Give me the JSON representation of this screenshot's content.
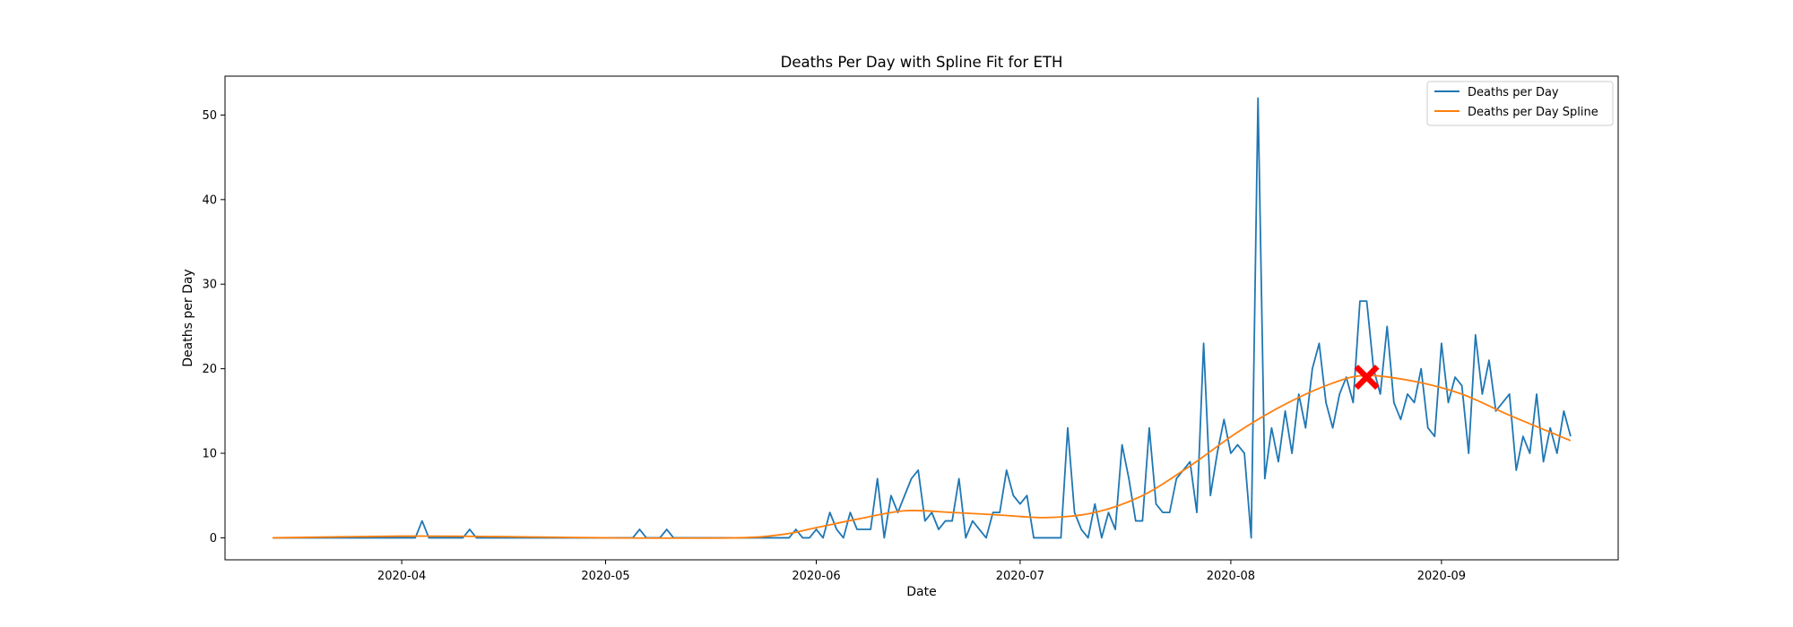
{
  "chart_data": {
    "type": "line",
    "title": "Deaths Per Day with Spline Fit for ETH",
    "xlabel": "Date",
    "ylabel": "Deaths per Day",
    "x_tick_labels": [
      "2020-04",
      "2020-05",
      "2020-06",
      "2020-07",
      "2020-08",
      "2020-09"
    ],
    "y_ticks": [
      0,
      10,
      20,
      30,
      40,
      50
    ],
    "xlim": [
      "2020-03-06",
      "2020-09-27"
    ],
    "ylim": [
      -2.6,
      54.6
    ],
    "legend_position": "upper right",
    "grid": false,
    "series": [
      {
        "name": "Deaths per Day",
        "color": "#1f77b4",
        "points": [
          [
            "2020-03-13",
            0
          ],
          [
            "2020-04-02",
            0
          ],
          [
            "2020-04-04",
            2
          ],
          [
            "2020-04-05",
            0
          ],
          [
            "2020-04-10",
            0
          ],
          [
            "2020-04-11",
            1
          ],
          [
            "2020-04-12",
            0
          ],
          [
            "2020-05-05",
            0
          ],
          [
            "2020-05-06",
            1
          ],
          [
            "2020-05-07",
            0
          ],
          [
            "2020-05-09",
            0
          ],
          [
            "2020-05-10",
            1
          ],
          [
            "2020-05-11",
            0
          ],
          [
            "2020-05-28",
            0
          ],
          [
            "2020-05-29",
            1
          ],
          [
            "2020-05-30",
            0
          ],
          [
            "2020-06-01",
            1
          ],
          [
            "2020-06-02",
            0
          ],
          [
            "2020-06-03",
            3
          ],
          [
            "2020-06-04",
            1
          ],
          [
            "2020-06-06",
            3
          ],
          [
            "2020-06-07",
            1
          ],
          [
            "2020-06-08",
            1
          ],
          [
            "2020-06-09",
            1
          ],
          [
            "2020-06-10",
            7
          ],
          [
            "2020-06-11",
            0
          ],
          [
            "2020-06-12",
            5
          ],
          [
            "2020-06-13",
            3
          ],
          [
            "2020-06-14",
            5
          ],
          [
            "2020-06-15",
            7
          ],
          [
            "2020-06-16",
            8
          ],
          [
            "2020-06-17",
            2
          ],
          [
            "2020-06-18",
            3
          ],
          [
            "2020-06-19",
            1
          ],
          [
            "2020-06-20",
            2
          ],
          [
            "2020-06-21",
            2
          ],
          [
            "2020-06-22",
            7
          ],
          [
            "2020-06-23",
            0
          ],
          [
            "2020-06-24",
            2
          ],
          [
            "2020-06-25",
            1
          ],
          [
            "2020-06-26",
            0
          ],
          [
            "2020-06-27",
            3
          ],
          [
            "2020-06-28",
            3
          ],
          [
            "2020-06-29",
            8
          ],
          [
            "2020-06-30",
            5
          ],
          [
            "2020-07-01",
            4
          ],
          [
            "2020-07-02",
            5
          ],
          [
            "2020-07-03",
            0
          ],
          [
            "2020-07-07",
            0
          ],
          [
            "2020-07-08",
            13
          ],
          [
            "2020-07-09",
            3
          ],
          [
            "2020-07-10",
            1
          ],
          [
            "2020-07-11",
            0
          ],
          [
            "2020-07-12",
            4
          ],
          [
            "2020-07-13",
            0
          ],
          [
            "2020-07-14",
            3
          ],
          [
            "2020-07-15",
            1
          ],
          [
            "2020-07-16",
            11
          ],
          [
            "2020-07-17",
            7
          ],
          [
            "2020-07-18",
            2
          ],
          [
            "2020-07-19",
            2
          ],
          [
            "2020-07-20",
            13
          ],
          [
            "2020-07-21",
            4
          ],
          [
            "2020-07-22",
            3
          ],
          [
            "2020-07-23",
            3
          ],
          [
            "2020-07-24",
            7
          ],
          [
            "2020-07-25",
            8
          ],
          [
            "2020-07-26",
            9
          ],
          [
            "2020-07-27",
            3
          ],
          [
            "2020-07-28",
            23
          ],
          [
            "2020-07-29",
            5
          ],
          [
            "2020-07-30",
            10
          ],
          [
            "2020-07-31",
            14
          ],
          [
            "2020-08-01",
            10
          ],
          [
            "2020-08-02",
            11
          ],
          [
            "2020-08-03",
            10
          ],
          [
            "2020-08-04",
            0
          ],
          [
            "2020-08-05",
            52
          ],
          [
            "2020-08-06",
            7
          ],
          [
            "2020-08-07",
            13
          ],
          [
            "2020-08-08",
            9
          ],
          [
            "2020-08-09",
            15
          ],
          [
            "2020-08-10",
            10
          ],
          [
            "2020-08-11",
            17
          ],
          [
            "2020-08-12",
            13
          ],
          [
            "2020-08-13",
            20
          ],
          [
            "2020-08-14",
            23
          ],
          [
            "2020-08-15",
            16
          ],
          [
            "2020-08-16",
            13
          ],
          [
            "2020-08-17",
            17
          ],
          [
            "2020-08-18",
            19
          ],
          [
            "2020-08-19",
            16
          ],
          [
            "2020-08-20",
            28
          ],
          [
            "2020-08-21",
            28
          ],
          [
            "2020-08-22",
            20
          ],
          [
            "2020-08-23",
            17
          ],
          [
            "2020-08-24",
            25
          ],
          [
            "2020-08-25",
            16
          ],
          [
            "2020-08-26",
            14
          ],
          [
            "2020-08-27",
            17
          ],
          [
            "2020-08-28",
            16
          ],
          [
            "2020-08-29",
            20
          ],
          [
            "2020-08-30",
            13
          ],
          [
            "2020-08-31",
            12
          ],
          [
            "2020-09-01",
            23
          ],
          [
            "2020-09-02",
            16
          ],
          [
            "2020-09-03",
            19
          ],
          [
            "2020-09-04",
            18
          ],
          [
            "2020-09-05",
            10
          ],
          [
            "2020-09-06",
            24
          ],
          [
            "2020-09-07",
            17
          ],
          [
            "2020-09-08",
            21
          ],
          [
            "2020-09-09",
            15
          ],
          [
            "2020-09-10",
            16
          ],
          [
            "2020-09-11",
            17
          ],
          [
            "2020-09-12",
            8
          ],
          [
            "2020-09-13",
            12
          ],
          [
            "2020-09-14",
            10
          ],
          [
            "2020-09-15",
            17
          ],
          [
            "2020-09-16",
            9
          ],
          [
            "2020-09-17",
            13
          ],
          [
            "2020-09-18",
            10
          ],
          [
            "2020-09-19",
            15
          ],
          [
            "2020-09-20",
            12
          ]
        ]
      },
      {
        "name": "Deaths per Day Spline",
        "color": "#ff7f0e",
        "points": [
          [
            "2020-03-13",
            0
          ],
          [
            "2020-04-01",
            0.2
          ],
          [
            "2020-04-15",
            0.15
          ],
          [
            "2020-05-01",
            0
          ],
          [
            "2020-05-20",
            0
          ],
          [
            "2020-05-27",
            0.4
          ],
          [
            "2020-06-01",
            1.2
          ],
          [
            "2020-06-07",
            2.2
          ],
          [
            "2020-06-14",
            3.2
          ],
          [
            "2020-06-21",
            3.0
          ],
          [
            "2020-06-28",
            2.7
          ],
          [
            "2020-07-05",
            2.4
          ],
          [
            "2020-07-12",
            3.0
          ],
          [
            "2020-07-19",
            5.0
          ],
          [
            "2020-07-26",
            8.5
          ],
          [
            "2020-08-02",
            12.5
          ],
          [
            "2020-08-09",
            15.8
          ],
          [
            "2020-08-16",
            18.3
          ],
          [
            "2020-08-21",
            19.2
          ],
          [
            "2020-08-28",
            18.5
          ],
          [
            "2020-09-04",
            17.0
          ],
          [
            "2020-09-11",
            14.5
          ],
          [
            "2020-09-20",
            11.5
          ]
        ]
      }
    ],
    "marker": {
      "date": "2020-08-21",
      "value": 19,
      "symbol": "X",
      "color": "#ff0000"
    }
  }
}
